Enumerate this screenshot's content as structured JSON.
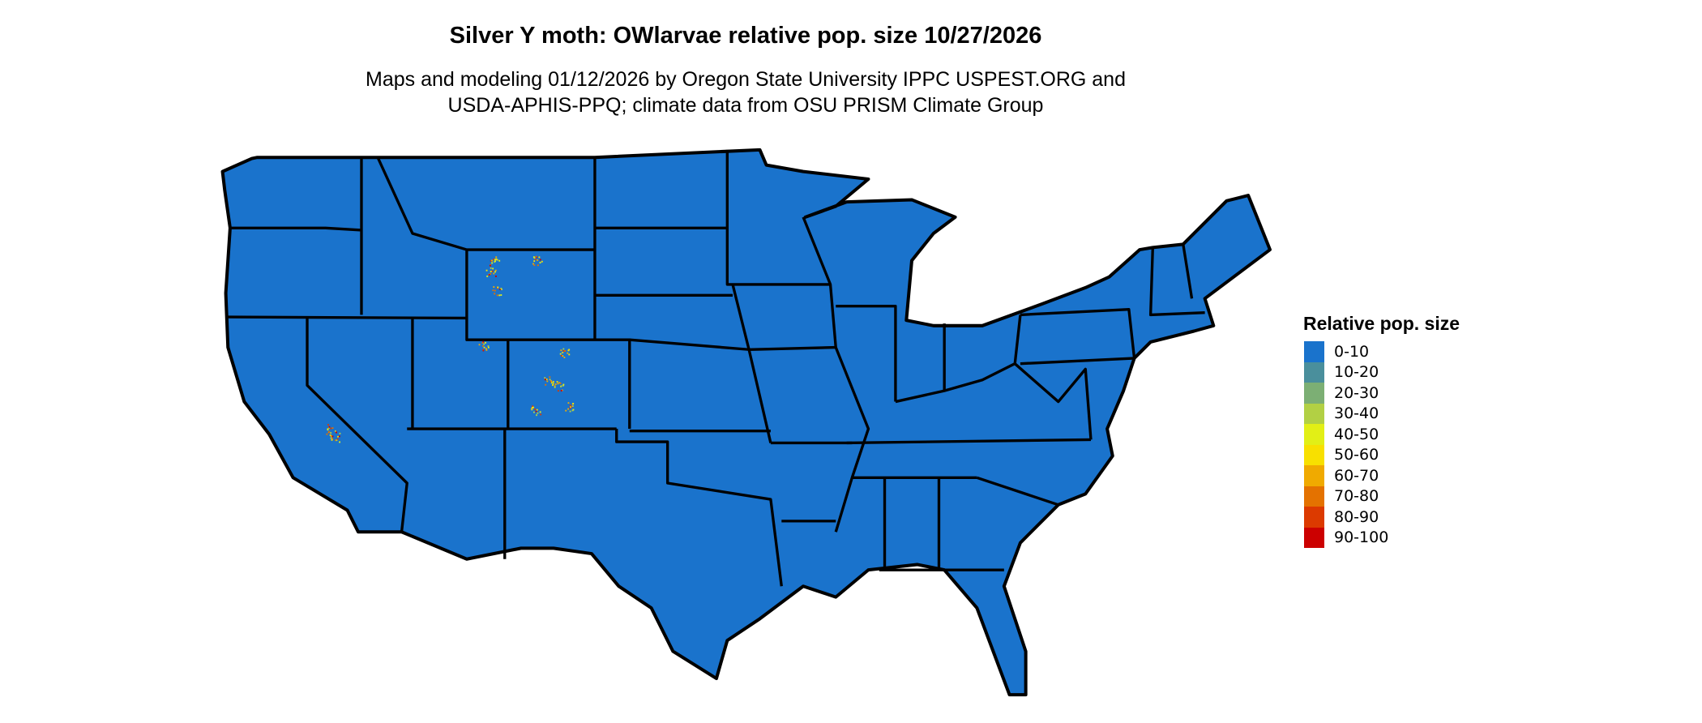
{
  "title": "Silver Y moth: OWlarvae relative pop. size 10/27/2026",
  "subtitle_line1": "Maps and modeling 01/12/2026 by Oregon State University IPPC USPEST.ORG and",
  "subtitle_line2": "USDA-APHIS-PPQ; climate data from OSU PRISM Climate Group",
  "map": {
    "region": "Contiguous United States",
    "base_fill": "#1a73cc",
    "border_color": "#000000",
    "hotspot_regions": [
      "Wyoming",
      "Colorado",
      "Utah",
      "California"
    ]
  },
  "legend": {
    "title": "Relative pop. size",
    "items": [
      {
        "label": "0-10",
        "color": "#1a73cc"
      },
      {
        "label": "10-20",
        "color": "#4a8f9c"
      },
      {
        "label": "20-30",
        "color": "#7caf74"
      },
      {
        "label": "30-40",
        "color": "#b2d044"
      },
      {
        "label": "40-50",
        "color": "#e2ef16"
      },
      {
        "label": "50-60",
        "color": "#f8e000"
      },
      {
        "label": "60-70",
        "color": "#f0aa00"
      },
      {
        "label": "70-80",
        "color": "#e47200"
      },
      {
        "label": "80-90",
        "color": "#dc3a00"
      },
      {
        "label": "90-100",
        "color": "#cc0000"
      }
    ]
  }
}
